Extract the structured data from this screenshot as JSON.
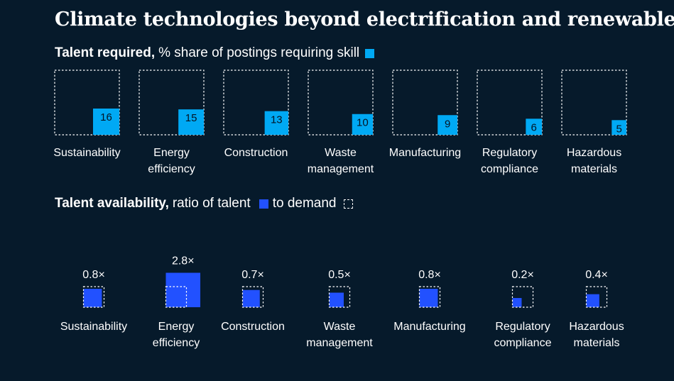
{
  "title": "Climate technologies beyond electrification and renewables",
  "colors": {
    "background": "#061a2b",
    "required_fill": "#00a9f4",
    "availability_fill": "#2251ff",
    "text": "#ffffff"
  },
  "talent_required": {
    "heading_bold": "Talent required,",
    "heading_rest": "% share of postings requiring skill"
  },
  "talent_availability": {
    "heading_bold": "Talent availability,",
    "heading_rest": "ratio of talent",
    "heading_mid": "to demand"
  },
  "chart_data": [
    {
      "type": "bar",
      "title": "Talent required, % share of postings requiring skill",
      "categories": [
        [
          "Sustainability"
        ],
        [
          "Energy",
          "efficiency"
        ],
        [
          "Construction"
        ],
        [
          "Waste",
          "management"
        ],
        [
          "Manufacturing"
        ],
        [
          "Regulatory",
          "compliance"
        ],
        [
          "Hazardous",
          "materials"
        ]
      ],
      "values": [
        16,
        15,
        13,
        10,
        9,
        6,
        5
      ],
      "unit": "%"
    },
    {
      "type": "bar",
      "title": "Talent availability, ratio of talent to demand",
      "categories": [
        [
          "Sustainability"
        ],
        [
          "Energy",
          "efficiency"
        ],
        [
          "Construction"
        ],
        [
          "Waste",
          "management"
        ],
        [
          "Manufacturing"
        ],
        [
          "Regulatory",
          "compliance"
        ],
        [
          "Hazardous",
          "materials"
        ]
      ],
      "values": [
        0.8,
        2.8,
        0.7,
        0.5,
        0.8,
        0.2,
        0.4
      ],
      "labels": [
        "0.8×",
        "2.8×",
        "0.7×",
        "0.5×",
        "0.8×",
        "0.2×",
        "0.4×"
      ],
      "demand_reference": 1.0
    }
  ]
}
